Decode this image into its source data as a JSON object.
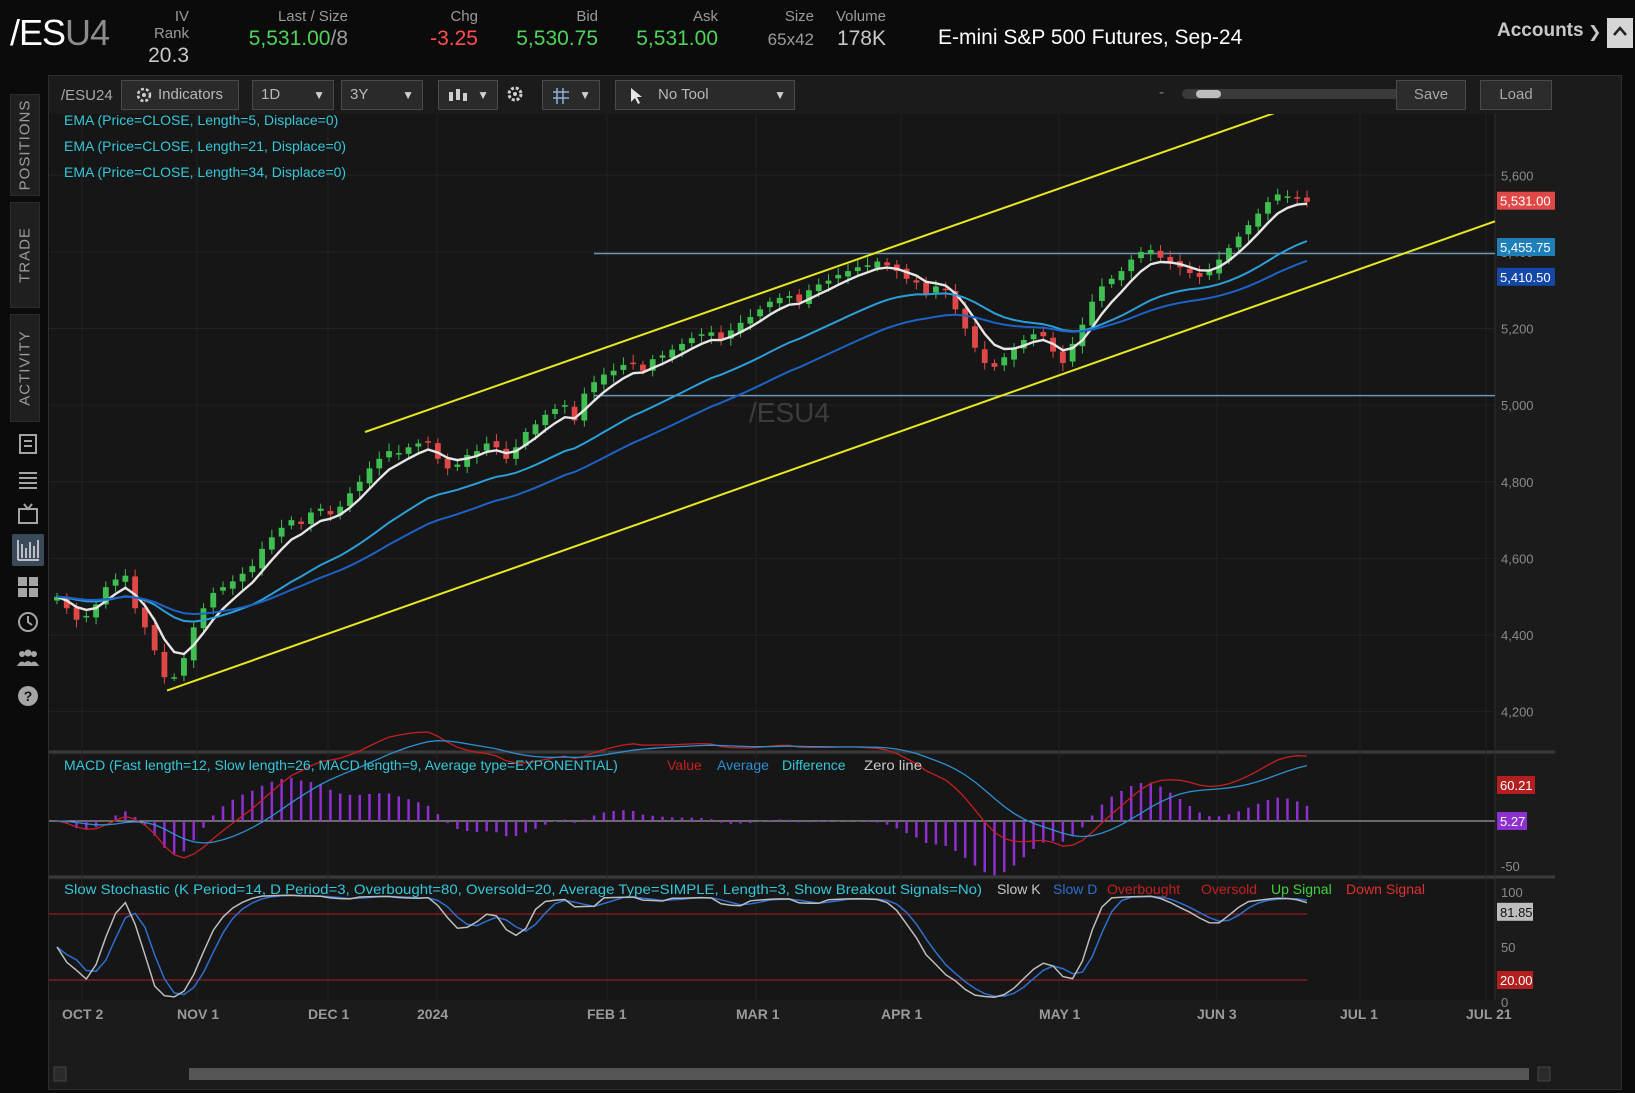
{
  "header": {
    "symbol_main": "/ES",
    "symbol_suffix": "U4",
    "iv_rank": {
      "label": "IV Rank",
      "value": "20.3"
    },
    "last": {
      "label": "Last / Size",
      "value": "5,531.00",
      "size": "/8"
    },
    "chg": {
      "label": "Chg",
      "value": "-3.25"
    },
    "bid": {
      "label": "Bid",
      "value": "5,530.75"
    },
    "ask": {
      "label": "Ask",
      "value": "5,531.00"
    },
    "size": {
      "label": "Size",
      "value": "65x42"
    },
    "volume": {
      "label": "Volume",
      "value": "178K"
    },
    "description": "E-mini S&P 500 Futures, Sep-24",
    "accounts_label": "Accounts"
  },
  "rail": {
    "tabs": [
      "POSITIONS",
      "TRADE",
      "ACTIVITY"
    ],
    "icons": [
      "document-icon",
      "list-icon",
      "tv-icon",
      "chart-icon",
      "grid-icon",
      "history-icon",
      "community-icon",
      "help-icon"
    ]
  },
  "toolbar": {
    "symbol": "/ESU24",
    "indicators_label": "Indicators",
    "interval": "1D",
    "range": "3Y",
    "tool": "No Tool",
    "zoom_minus": "-",
    "zoom_plus": "+",
    "save_label": "Save",
    "load_label": "Load"
  },
  "studies": {
    "ema5": "EMA (Price=CLOSE, Length=5, Displace=0)",
    "ema21": "EMA (Price=CLOSE, Length=21, Displace=0)",
    "ema34": "EMA (Price=CLOSE, Length=34, Displace=0)",
    "watermark": "/ESU4",
    "macd_title": "MACD (Fast length=12, Slow length=26, MACD length=9, Average type=EXPONENTIAL)",
    "macd_legend": [
      "Value",
      "Average",
      "Difference",
      "Zero line"
    ],
    "stoch_title": "Slow Stochastic (K Period=14, D Period=3, Overbought=80, Oversold=20, Average Type=SIMPLE, Length=3, Show Breakout Signals=No)",
    "stoch_legend": [
      "Slow K",
      "Slow D",
      "Overbought",
      "Oversold",
      "Up Signal",
      "Down Signal"
    ]
  },
  "colors": {
    "candle_up": "#3fbf52",
    "candle_down": "#e04848",
    "ema5": "#e6e6e6",
    "ema21": "#2d9fd8",
    "ema34": "#1d63c7",
    "channel": "#e8e820",
    "hline": "#6f95b6",
    "macd_value": "#c42020",
    "macd_avg": "#2d8fd0",
    "macd_diff": "#8e2fd0"
  },
  "chart_data": {
    "type": "candlestick",
    "price_axis": {
      "ticks": [
        4200,
        4400,
        4600,
        4800,
        5000,
        5200,
        5400,
        5600
      ],
      "ylim": [
        4100,
        5760
      ]
    },
    "x_ticks": [
      "OCT 2",
      "NOV 1",
      "DEC 1",
      "2024",
      "FEB 1",
      "MAR 1",
      "APR 1",
      "MAY 1",
      "JUN 3",
      "JUL 1",
      "JUL 21"
    ],
    "price_labels": {
      "last": "5,531.00",
      "ema21": "5,455.75",
      "ema34": "5,410.50"
    },
    "levels": {
      "resistance": 5396,
      "support": 5025
    },
    "channel": {
      "lower_start": 4255,
      "lower_end": 5480,
      "upper_start": 4930,
      "upper_end": 5785
    },
    "close_series": [
      4500,
      4470,
      4440,
      4450,
      4480,
      4525,
      4545,
      4555,
      4470,
      4420,
      4360,
      4290,
      4290,
      4340,
      4420,
      4470,
      4510,
      4525,
      4540,
      4560,
      4580,
      4625,
      4655,
      4680,
      4700,
      4690,
      4720,
      4730,
      4715,
      4735,
      4770,
      4800,
      4835,
      4860,
      4880,
      4875,
      4890,
      4900,
      4905,
      4860,
      4835,
      4845,
      4870,
      4880,
      4900,
      4890,
      4860,
      4890,
      4930,
      4950,
      4975,
      4990,
      5000,
      4960,
      5030,
      5060,
      5080,
      5090,
      5105,
      5110,
      5090,
      5120,
      5130,
      5145,
      5160,
      5175,
      5185,
      5190,
      5170,
      5195,
      5215,
      5230,
      5250,
      5270,
      5280,
      5285,
      5270,
      5300,
      5315,
      5325,
      5340,
      5350,
      5360,
      5365,
      5375,
      5365,
      5350,
      5330,
      5320,
      5290,
      5310,
      5300,
      5250,
      5200,
      5150,
      5110,
      5100,
      5125,
      5150,
      5170,
      5185,
      5180,
      5140,
      5110,
      5160,
      5210,
      5270,
      5310,
      5330,
      5350,
      5380,
      5400,
      5405,
      5385,
      5370,
      5360,
      5345,
      5335,
      5350,
      5380,
      5410,
      5440,
      5470,
      5500,
      5530,
      5550,
      5545,
      5540,
      5531
    ],
    "macd_axis": {
      "ticks": [
        -50
      ],
      "labels": {
        "value": "60.21",
        "diff": "5.27"
      }
    },
    "stoch_axis": {
      "ticks": [
        0,
        50,
        100
      ],
      "labels": {
        "k": "81.85",
        "oversold": "20.00"
      },
      "overbought": 80,
      "oversold": 20
    }
  }
}
